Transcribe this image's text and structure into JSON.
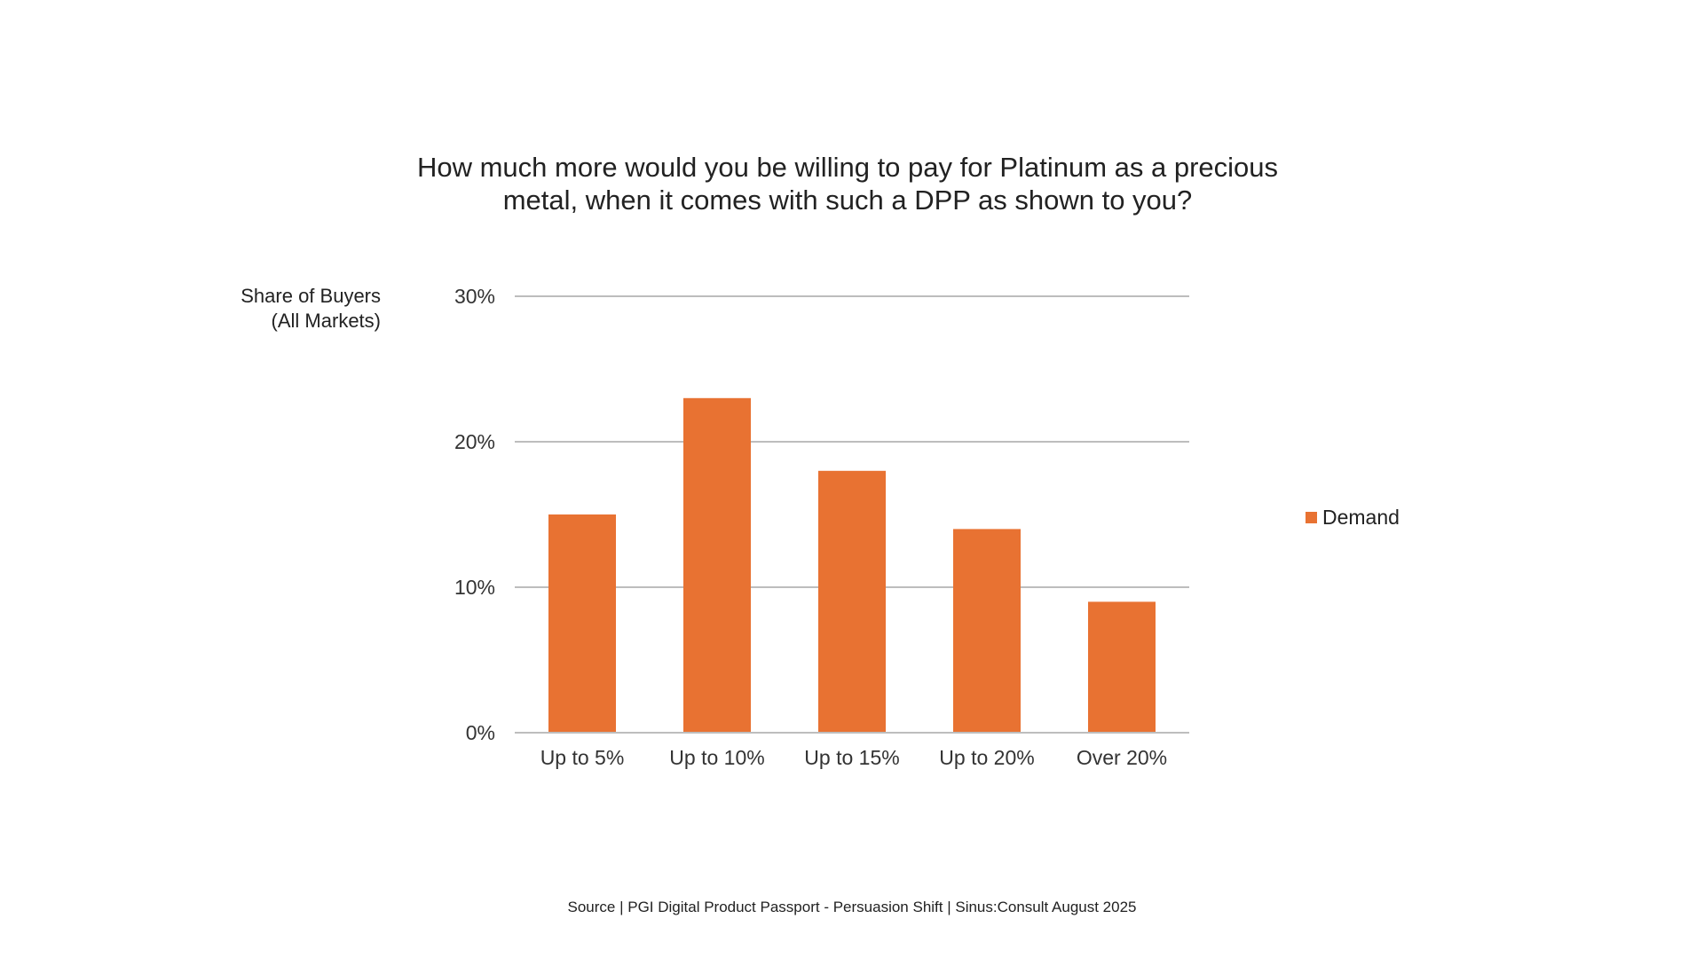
{
  "title_line1": "How much more would you be willing to pay for Platinum as a precious",
  "title_line2": "metal, when it comes with such a DPP as shown to you?",
  "ylabel_line1": "Share of Buyers",
  "ylabel_line2": "(All Markets)",
  "source": "Source | PGI Digital Product Passport  - Persuasion Shift | Sinus:Consult August 2025",
  "chart_data": {
    "type": "bar",
    "title": "How much more would you be willing to pay for Platinum as a precious metal, when it comes with such a DPP as shown to you?",
    "xlabel": "",
    "ylabel": "Share of Buyers (All Markets)",
    "categories": [
      "Up to 5%",
      "Up to 10%",
      "Up to 15%",
      "Up to 20%",
      "Over 20%"
    ],
    "series": [
      {
        "name": "Demand",
        "values": [
          15,
          23,
          18,
          14,
          9
        ],
        "color": "#E87232"
      }
    ],
    "ylim": [
      0,
      30
    ],
    "yticks": [
      0,
      10,
      20,
      30
    ],
    "ytick_labels": [
      "0%",
      "10%",
      "20%",
      "30%"
    ],
    "grid": true,
    "legend_position": "right"
  }
}
